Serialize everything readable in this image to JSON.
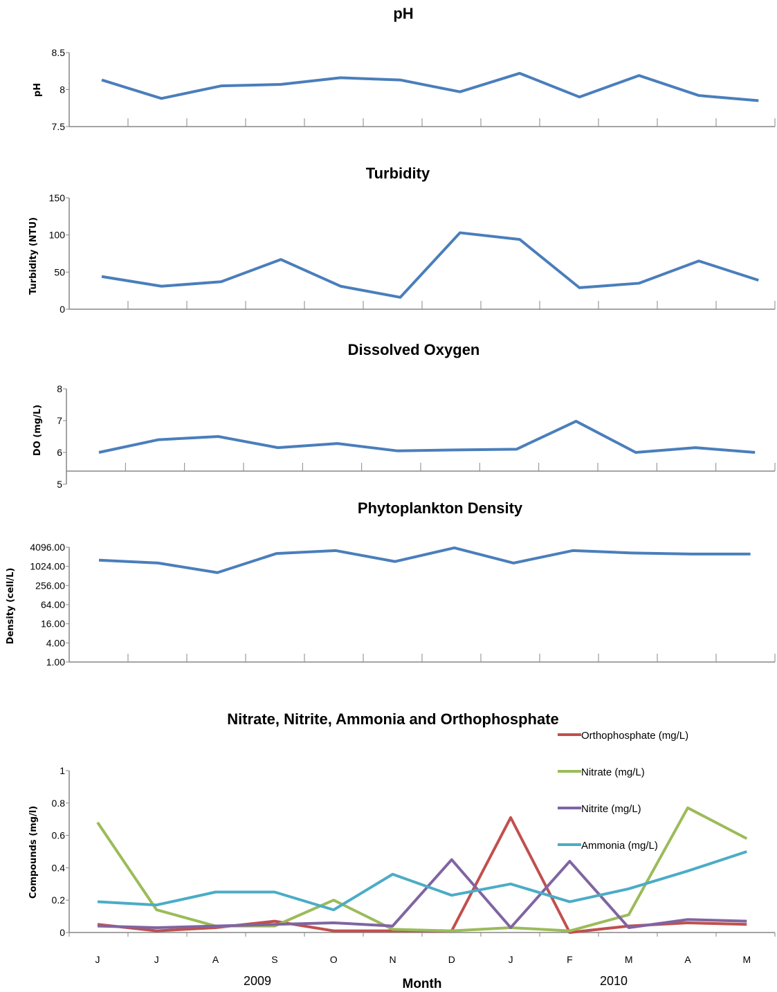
{
  "months": [
    "J",
    "J",
    "A",
    "S",
    "O",
    "N",
    "D",
    "J",
    "F",
    "M",
    "A",
    "M"
  ],
  "years": [
    "2009",
    "2010"
  ],
  "xlabel": "Month",
  "colors": {
    "line": "#4a7ebb",
    "axis": "#868686"
  },
  "chart_data": [
    {
      "type": "line",
      "title": "pH",
      "ylabel": "pH",
      "ylim": [
        7.5,
        8.5
      ],
      "yticks": [
        "7.5",
        "8",
        "8.5"
      ],
      "series": [
        {
          "values": [
            8.13,
            7.88,
            8.05,
            8.07,
            8.16,
            8.13,
            7.97,
            8.22,
            7.9,
            8.19,
            7.92,
            7.85
          ],
          "color": "#4a7ebb"
        }
      ]
    },
    {
      "type": "line",
      "title": "Turbidity",
      "ylabel": "Turbidity (NTU)",
      "ylim": [
        0,
        150
      ],
      "yticks": [
        "0",
        "50",
        "100",
        "150"
      ],
      "series": [
        {
          "values": [
            44,
            31,
            37,
            67,
            31,
            16,
            103,
            94,
            29,
            35,
            65,
            39
          ],
          "color": "#4a7ebb"
        }
      ]
    },
    {
      "type": "line",
      "title": "Dissolved Oxygen",
      "ylabel": "DO (mg/L)",
      "ylim": [
        5,
        8
      ],
      "yticks": [
        "5",
        "6",
        "7",
        "8"
      ],
      "series": [
        {
          "values": [
            6.0,
            6.4,
            6.5,
            6.15,
            6.28,
            6.05,
            6.08,
            6.1,
            6.98,
            6.0,
            6.15,
            6.0
          ],
          "color": "#4a7ebb"
        }
      ]
    },
    {
      "type": "line",
      "title": "Phytoplankton Density",
      "ylabel": "Density (cell/L)",
      "log_scale": true,
      "ylim": [
        1,
        4096
      ],
      "yticks": [
        "1.00",
        "4.00",
        "16.00",
        "64.00",
        "256.00",
        "1024.00",
        "4096.00"
      ],
      "series": [
        {
          "values": [
            1600,
            1300,
            650,
            2600,
            3200,
            1450,
            3900,
            1300,
            3200,
            2700,
            2500,
            2500
          ],
          "color": "#4a7ebb"
        }
      ]
    },
    {
      "type": "line",
      "title": "Nitrate, Nitrite, Ammonia and Orthophosphate",
      "ylabel": "Compounds (mg/l)",
      "ylim": [
        0,
        1
      ],
      "yticks": [
        "0",
        "0.2",
        "0.4",
        "0.6",
        "0.8",
        "1"
      ],
      "legend_position": "top-right",
      "series": [
        {
          "name": "Orthophosphate (mg/L)",
          "color": "#c0504d",
          "values": [
            0.05,
            0.01,
            0.03,
            0.07,
            0.01,
            0.01,
            0.01,
            0.71,
            0.0,
            0.04,
            0.06,
            0.05
          ]
        },
        {
          "name": "Nitrate (mg/L)",
          "color": "#9bbb59",
          "values": [
            0.68,
            0.14,
            0.04,
            0.04,
            0.2,
            0.02,
            0.01,
            0.03,
            0.01,
            0.11,
            0.77,
            0.58
          ]
        },
        {
          "name": "Nitrite (mg/L)",
          "color": "#8064a2",
          "values": [
            0.04,
            0.03,
            0.04,
            0.05,
            0.06,
            0.04,
            0.45,
            0.03,
            0.44,
            0.03,
            0.08,
            0.07
          ]
        },
        {
          "name": "Ammonia (mg/L)",
          "color": "#4bacc6",
          "values": [
            0.19,
            0.17,
            0.25,
            0.25,
            0.14,
            0.36,
            0.23,
            0.3,
            0.19,
            0.27,
            0.38,
            0.5
          ]
        }
      ]
    }
  ]
}
